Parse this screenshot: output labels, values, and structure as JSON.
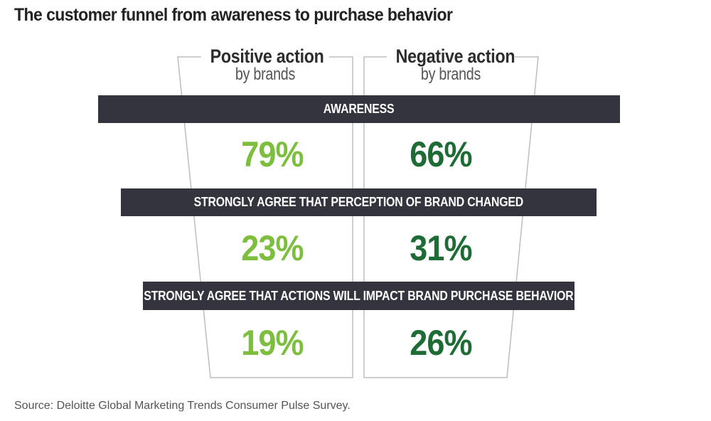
{
  "title": "The customer funnel from awareness to purchase behavior",
  "colors": {
    "positive": "#7dbe3f",
    "negative": "#1e6b35",
    "bar_bg": "#34343f",
    "outline": "#bdbdbd"
  },
  "columns": [
    {
      "title": "Positive action",
      "subtitle": "by brands"
    },
    {
      "title": "Negative action",
      "subtitle": "by brands"
    }
  ],
  "chart_data": {
    "type": "table",
    "title": "The customer funnel from awareness to purchase behavior",
    "series": [
      {
        "name": "Positive action by brands",
        "values": [
          79,
          23,
          19
        ]
      },
      {
        "name": "Negative action by brands",
        "values": [
          66,
          31,
          26
        ]
      }
    ],
    "categories": [
      "AWARENESS",
      "STRONGLY AGREE THAT PERCEPTION OF BRAND CHANGED",
      "STRONGLY AGREE THAT ACTIONS WILL IMPACT BRAND PURCHASE BEHAVIOR"
    ],
    "value_labels": {
      "positive": [
        "79%",
        "23%",
        "19%"
      ],
      "negative": [
        "66%",
        "31%",
        "26%"
      ]
    },
    "unit": "%"
  },
  "source": "Source: Deloitte Global Marketing Trends Consumer Pulse Survey."
}
